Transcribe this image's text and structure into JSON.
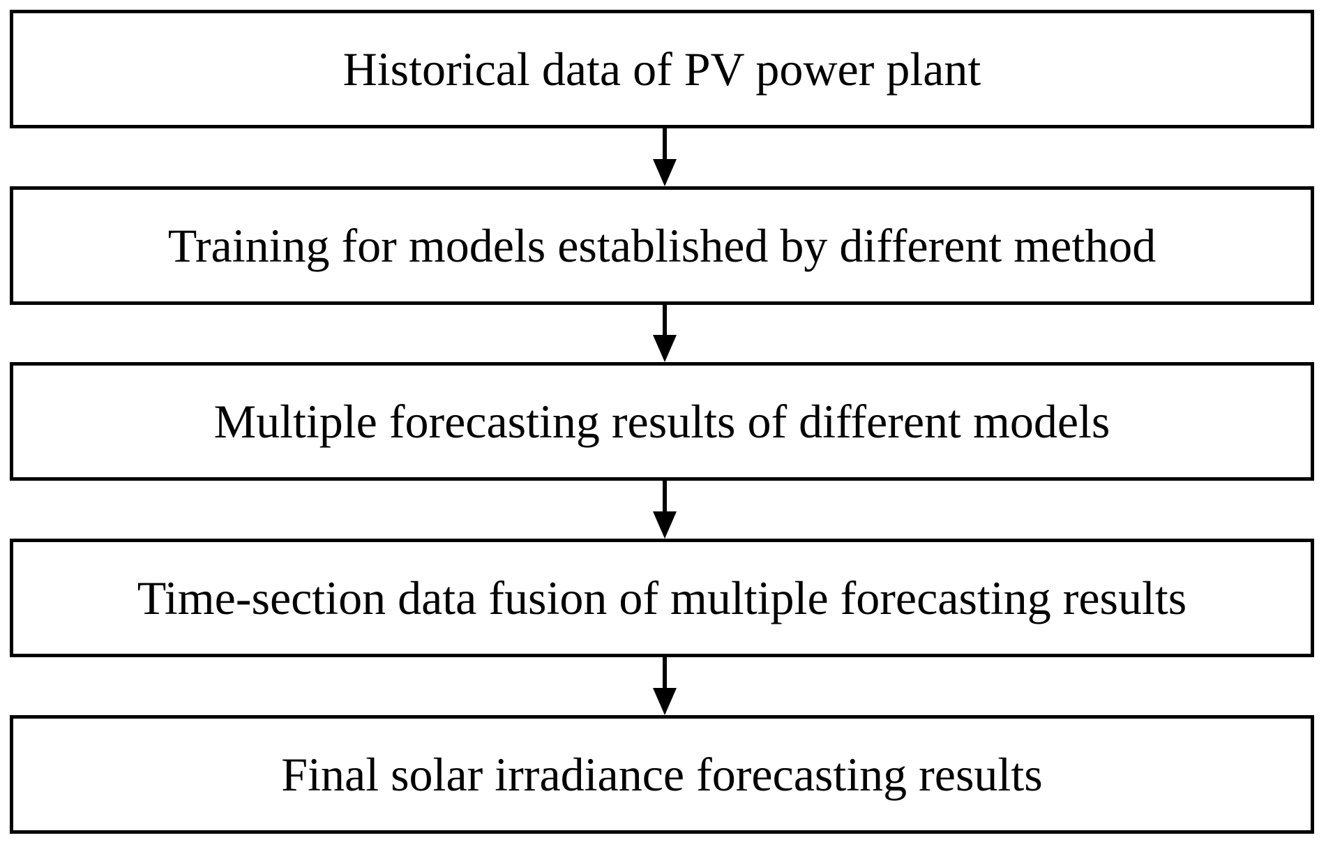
{
  "flowchart": {
    "steps": [
      {
        "label": "Historical data of PV power plant"
      },
      {
        "label": "Training for models established by different method"
      },
      {
        "label": "Multiple forecasting results of different models"
      },
      {
        "label": "Time-section data fusion of multiple forecasting results"
      },
      {
        "label": "Final solar irradiance forecasting results"
      }
    ],
    "connector_icon": "arrow-down-icon",
    "colors": {
      "stroke": "#000000",
      "fill": "#ffffff"
    }
  }
}
